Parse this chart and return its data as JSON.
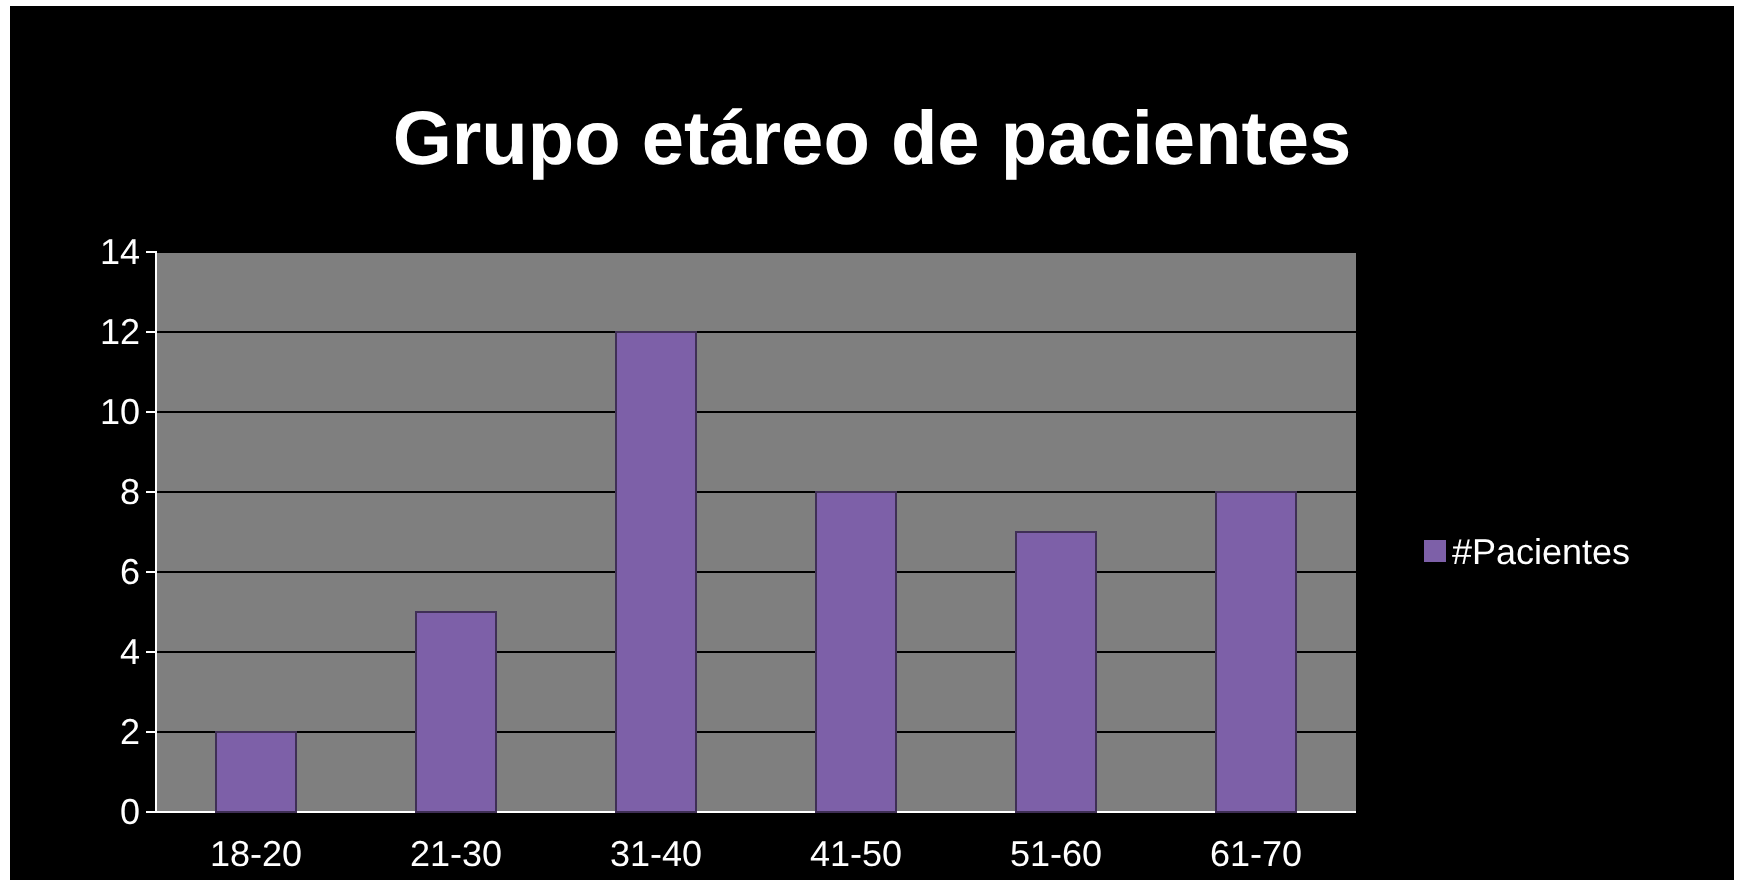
{
  "chart_data": {
    "type": "bar",
    "title": "Grupo etáreo de pacientes",
    "categories": [
      "18-20",
      "21-30",
      "31-40",
      "41-50",
      "51-60",
      "61-70"
    ],
    "series": [
      {
        "name": "#Pacientes",
        "color": "#7d60a8",
        "values": [
          2,
          5,
          12,
          8,
          7,
          8
        ]
      }
    ],
    "ylim": [
      0,
      14
    ],
    "yticks": [
      0,
      2,
      4,
      6,
      8,
      10,
      12,
      14
    ],
    "grid": "y",
    "legend": "right"
  }
}
